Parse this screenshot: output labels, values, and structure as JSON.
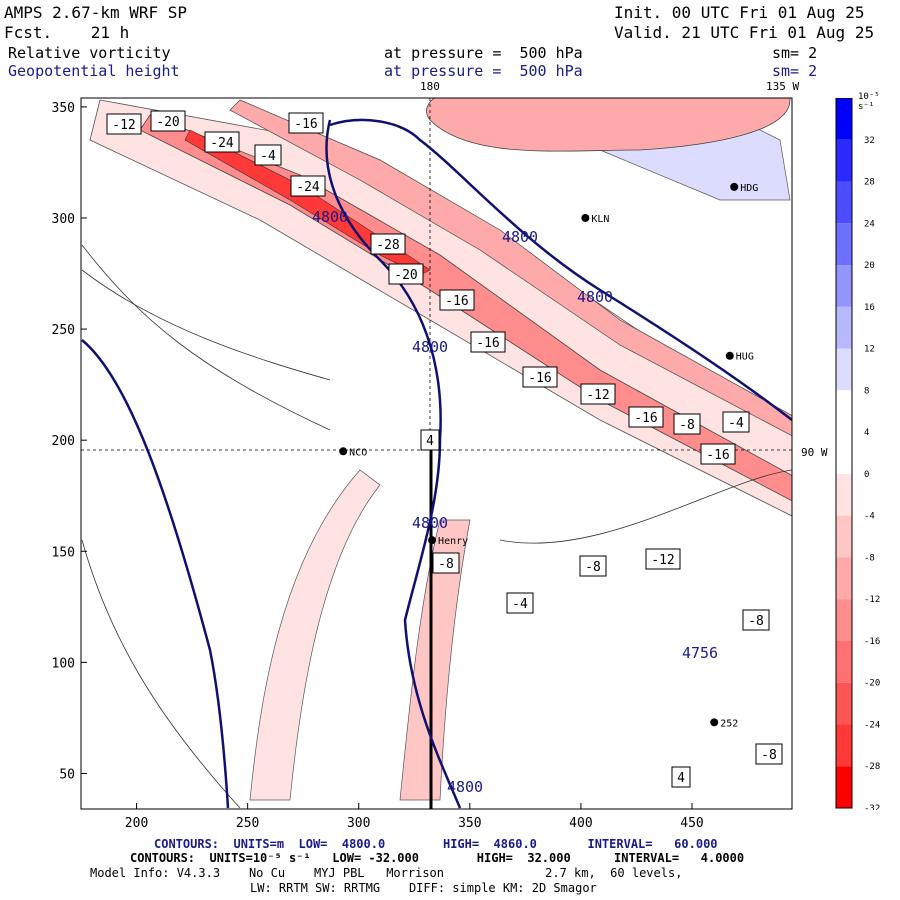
{
  "header": {
    "model": "AMPS 2.67-km WRF SP",
    "init": "Init. 00 UTC Fri 01 Aug 25",
    "fcst": "Fcst.    21 h",
    "valid": "Valid. 21 UTC Fri 01 Aug 25"
  },
  "fields": [
    {
      "name": "Relative vorticity",
      "level": "at pressure =  500 hPa",
      "smooth": "sm= 2"
    },
    {
      "name": "Geopotential height",
      "level": "at pressure =  500 hPa",
      "smooth": "sm= 2"
    }
  ],
  "map": {
    "top_lon_label": "180",
    "top_right_lon_label": "135 W",
    "right_lat_label": "90 W",
    "x_ticks": [
      "200",
      "250",
      "300",
      "350",
      "400",
      "450"
    ],
    "y_ticks": [
      "350",
      "300",
      "250",
      "200",
      "150",
      "100",
      "50"
    ],
    "stations": [
      {
        "name": "KLN",
        "x": 402,
        "y": 300
      },
      {
        "name": "HDG",
        "x": 469,
        "y": 314
      },
      {
        "name": "NCO",
        "x": 293,
        "y": 195
      },
      {
        "name": "Henry",
        "x": 333,
        "y": 155
      },
      {
        "name": "HUG",
        "x": 467,
        "y": 238
      },
      {
        "name": "252",
        "x": 460,
        "y": 73
      }
    ],
    "height_labels": [
      "4800",
      "4800",
      "4800",
      "4800",
      "4800",
      "4800",
      "4756"
    ],
    "vort_labels": [
      "-12",
      "-20",
      "-16",
      "-24",
      "-4",
      "-24",
      "-28",
      "-20",
      "-16",
      "-16",
      "-16",
      "-12",
      "-16",
      "-16",
      "-8",
      "-4",
      "4",
      "-8",
      "-12",
      "-8",
      "-8",
      "-4",
      "4",
      "-8"
    ]
  },
  "colorbar": {
    "unit": "10⁻⁵ s⁻¹",
    "levels": [
      "32",
      "28",
      "24",
      "20",
      "16",
      "12",
      "8",
      "4",
      "0",
      "-4",
      "-8",
      "-12",
      "-16",
      "-20",
      "-24",
      "-28",
      "-32"
    ],
    "colors": [
      "#0000ff",
      "#2a2aff",
      "#4d4dff",
      "#6f6fff",
      "#9494ff",
      "#b8b8ff",
      "#dcdcff",
      "#ffffff",
      "#ffffff",
      "#ffe3e3",
      "#ffc6c6",
      "#ffaaaa",
      "#ff8d8d",
      "#ff7171",
      "#ff5454",
      "#ff3838",
      "#ff0000"
    ]
  },
  "footer": {
    "line1_prefix": "CONTOURS:  UNITS=m  LOW=  4800.0        HIGH=  4860.0       INTERVAL=   60.000",
    "line2": "CONTOURS:  UNITS=10⁻⁵ s⁻¹   LOW= -32.000        HIGH=  32.000      INTERVAL=   4.0000",
    "line3": "Model Info: V4.3.3    No Cu    MYJ PBL   Morrison              2.7 km,  60 levels,",
    "line4": "LW: RRTM SW: RRTMG    DIFF: simple KM: 2D Smagor"
  }
}
